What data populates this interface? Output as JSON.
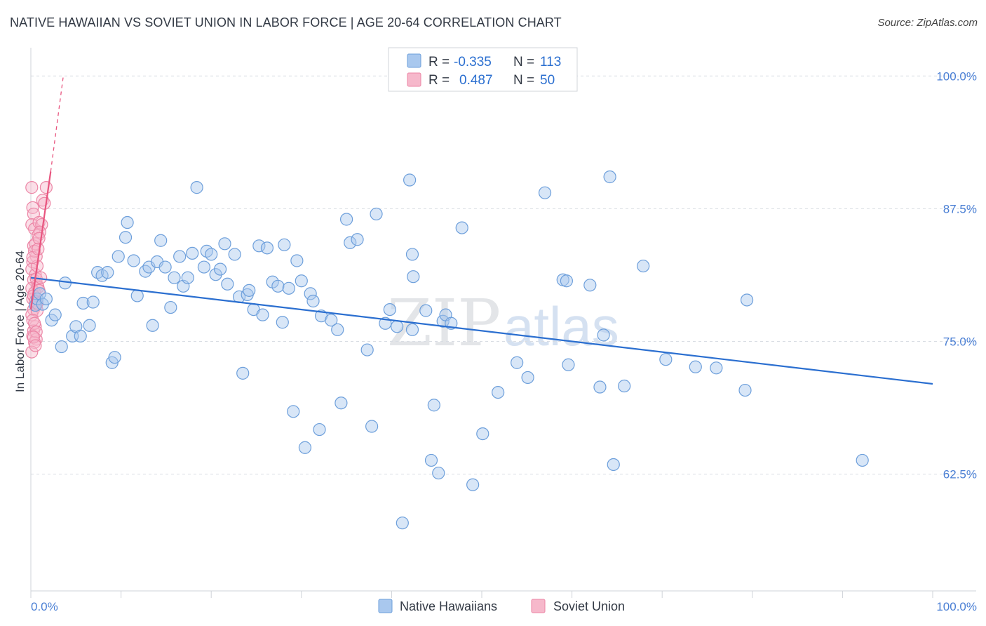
{
  "title": "NATIVE HAWAIIAN VS SOVIET UNION IN LABOR FORCE | AGE 20-64 CORRELATION CHART",
  "source": "Source: ZipAtlas.com",
  "watermark": {
    "part1": "ZIP",
    "part2": "atlas"
  },
  "colors": {
    "blue_fill": "#a9c8ee",
    "blue_stroke": "#6d9fdb",
    "blue_line": "#2b6fd0",
    "pink_fill": "#f6b8cb",
    "pink_stroke": "#ec86a6",
    "pink_line": "#e8557f",
    "tick_label": "#4a7fd4",
    "grid": "#d9dde3",
    "axis": "#cfd3d8"
  },
  "legend_stats": {
    "r_label": "R =",
    "n_label": "N =",
    "rows": [
      {
        "r": "-0.335",
        "n": "113"
      },
      {
        "r": "0.487",
        "n": "50"
      }
    ]
  },
  "chart_data": {
    "type": "scatter",
    "title": "NATIVE HAWAIIAN VS SOVIET UNION IN LABOR FORCE | AGE 20-64 CORRELATION CHART",
    "xlabel": "",
    "ylabel": "In Labor Force | Age 20-64",
    "xlim": [
      0,
      100
    ],
    "ylim": [
      51.5,
      102
    ],
    "x_tick_labels": [
      "0.0%",
      "100.0%"
    ],
    "y_ticks": [
      62.5,
      75.0,
      87.5,
      100.0
    ],
    "y_tick_labels": [
      "62.5%",
      "75.0%",
      "87.5%",
      "100.0%"
    ],
    "grid": "horizontal-dashed",
    "legend_position": "bottom-center",
    "series": [
      {
        "name": "Native Hawaiians",
        "trend": {
          "x0": 0,
          "y0": 81.0,
          "x1": 100,
          "y1": 71.0,
          "style": "solid"
        },
        "points": [
          [
            0.5,
            78.4
          ],
          [
            0.7,
            79.0
          ],
          [
            1.0,
            79.5
          ],
          [
            1.3,
            78.5
          ],
          [
            1.7,
            79.0
          ],
          [
            2.3,
            77.0
          ],
          [
            2.7,
            77.5
          ],
          [
            3.4,
            74.5
          ],
          [
            3.8,
            80.5
          ],
          [
            4.6,
            75.5
          ],
          [
            5.0,
            76.4
          ],
          [
            5.5,
            75.5
          ],
          [
            5.8,
            78.6
          ],
          [
            6.5,
            76.5
          ],
          [
            6.9,
            78.7
          ],
          [
            7.4,
            81.5
          ],
          [
            7.9,
            81.2
          ],
          [
            8.5,
            81.5
          ],
          [
            9.0,
            73.0
          ],
          [
            9.3,
            73.5
          ],
          [
            9.7,
            83.0
          ],
          [
            10.5,
            84.8
          ],
          [
            10.7,
            86.2
          ],
          [
            11.4,
            82.6
          ],
          [
            11.8,
            79.3
          ],
          [
            12.7,
            81.6
          ],
          [
            13.1,
            82.0
          ],
          [
            13.5,
            76.5
          ],
          [
            14.0,
            82.5
          ],
          [
            14.4,
            84.5
          ],
          [
            14.9,
            82.0
          ],
          [
            15.5,
            78.2
          ],
          [
            15.9,
            81.0
          ],
          [
            16.5,
            83.0
          ],
          [
            16.9,
            80.2
          ],
          [
            17.4,
            81.0
          ],
          [
            17.9,
            83.3
          ],
          [
            18.4,
            89.5
          ],
          [
            19.2,
            82.0
          ],
          [
            19.5,
            83.5
          ],
          [
            20.0,
            83.2
          ],
          [
            20.5,
            81.3
          ],
          [
            21.0,
            81.8
          ],
          [
            21.5,
            84.2
          ],
          [
            21.8,
            80.4
          ],
          [
            22.6,
            83.2
          ],
          [
            23.1,
            79.2
          ],
          [
            23.5,
            72.0
          ],
          [
            24.0,
            79.4
          ],
          [
            24.2,
            79.8
          ],
          [
            24.7,
            78.0
          ],
          [
            25.3,
            84.0
          ],
          [
            25.7,
            77.5
          ],
          [
            26.2,
            83.8
          ],
          [
            26.8,
            80.6
          ],
          [
            27.4,
            80.2
          ],
          [
            27.9,
            76.8
          ],
          [
            28.1,
            84.1
          ],
          [
            28.6,
            80.0
          ],
          [
            29.1,
            68.4
          ],
          [
            29.5,
            82.6
          ],
          [
            30.0,
            80.7
          ],
          [
            30.4,
            65.0
          ],
          [
            31.0,
            79.5
          ],
          [
            31.3,
            78.8
          ],
          [
            32.0,
            66.7
          ],
          [
            32.2,
            77.4
          ],
          [
            33.3,
            77.0
          ],
          [
            34.0,
            76.1
          ],
          [
            34.4,
            69.2
          ],
          [
            35.0,
            86.5
          ],
          [
            35.4,
            84.3
          ],
          [
            36.2,
            84.6
          ],
          [
            37.3,
            74.2
          ],
          [
            37.8,
            67.0
          ],
          [
            38.3,
            87.0
          ],
          [
            39.3,
            76.7
          ],
          [
            39.8,
            78.0
          ],
          [
            40.6,
            76.4
          ],
          [
            41.2,
            57.9
          ],
          [
            42.3,
            76.1
          ],
          [
            42.0,
            90.2
          ],
          [
            42.3,
            83.2
          ],
          [
            42.4,
            81.1
          ],
          [
            43.8,
            77.9
          ],
          [
            44.4,
            63.8
          ],
          [
            44.7,
            69.0
          ],
          [
            45.2,
            62.6
          ],
          [
            45.7,
            76.9
          ],
          [
            46.0,
            77.5
          ],
          [
            46.6,
            76.7
          ],
          [
            47.8,
            85.7
          ],
          [
            49.0,
            61.5
          ],
          [
            50.1,
            66.3
          ],
          [
            51.8,
            70.2
          ],
          [
            53.9,
            73.0
          ],
          [
            55.1,
            71.6
          ],
          [
            57.0,
            89.0
          ],
          [
            59.0,
            80.8
          ],
          [
            59.4,
            80.7
          ],
          [
            59.6,
            72.8
          ],
          [
            62.0,
            80.3
          ],
          [
            63.1,
            70.7
          ],
          [
            63.5,
            75.6
          ],
          [
            64.2,
            90.5
          ],
          [
            64.6,
            63.4
          ],
          [
            65.8,
            70.8
          ],
          [
            67.9,
            82.1
          ],
          [
            70.4,
            73.3
          ],
          [
            73.7,
            72.6
          ],
          [
            76.0,
            72.5
          ],
          [
            79.2,
            70.4
          ],
          [
            79.4,
            78.9
          ],
          [
            92.2,
            63.8
          ]
        ]
      },
      {
        "name": "Soviet Union",
        "trend": {
          "x0": 0,
          "y0": 78.0,
          "x1": 2.2,
          "y1": 91.0,
          "style": "solid",
          "extension": {
            "x1": 3.6,
            "y1": 100.0,
            "style": "dashed"
          }
        },
        "points": [
          [
            0.1,
            89.5
          ],
          [
            0.2,
            87.6
          ],
          [
            0.3,
            87.0
          ],
          [
            0.1,
            86.0
          ],
          [
            0.4,
            85.6
          ],
          [
            0.3,
            84.0
          ],
          [
            0.6,
            83.0
          ],
          [
            0.2,
            82.5
          ],
          [
            0.1,
            81.8
          ],
          [
            0.5,
            81.3
          ],
          [
            0.3,
            80.8
          ],
          [
            0.7,
            80.3
          ],
          [
            0.1,
            80.0
          ],
          [
            0.4,
            79.6
          ],
          [
            0.2,
            79.0
          ],
          [
            0.6,
            78.4
          ],
          [
            0.3,
            78.0
          ],
          [
            0.1,
            77.5
          ],
          [
            0.5,
            76.4
          ],
          [
            0.3,
            76.0
          ],
          [
            0.2,
            75.5
          ],
          [
            0.6,
            75.2
          ],
          [
            0.4,
            74.9
          ],
          [
            0.1,
            74.0
          ],
          [
            0.8,
            85.0
          ],
          [
            0.9,
            86.2
          ],
          [
            0.5,
            84.2
          ],
          [
            0.7,
            82.1
          ],
          [
            0.4,
            83.5
          ],
          [
            0.2,
            82.9
          ],
          [
            0.6,
            80.9
          ],
          [
            0.8,
            80.1
          ],
          [
            0.3,
            79.3
          ],
          [
            0.5,
            78.8
          ],
          [
            0.7,
            77.9
          ],
          [
            0.2,
            77.0
          ],
          [
            0.4,
            76.7
          ],
          [
            0.6,
            75.9
          ],
          [
            0.3,
            75.4
          ],
          [
            0.5,
            74.6
          ],
          [
            1.3,
            88.3
          ],
          [
            1.7,
            89.5
          ],
          [
            1.5,
            88.0
          ],
          [
            1.2,
            86.0
          ],
          [
            1.0,
            85.3
          ],
          [
            0.9,
            84.7
          ],
          [
            0.8,
            83.7
          ],
          [
            1.1,
            81.0
          ],
          [
            0.9,
            79.8
          ],
          [
            0.7,
            78.6
          ]
        ]
      }
    ]
  }
}
